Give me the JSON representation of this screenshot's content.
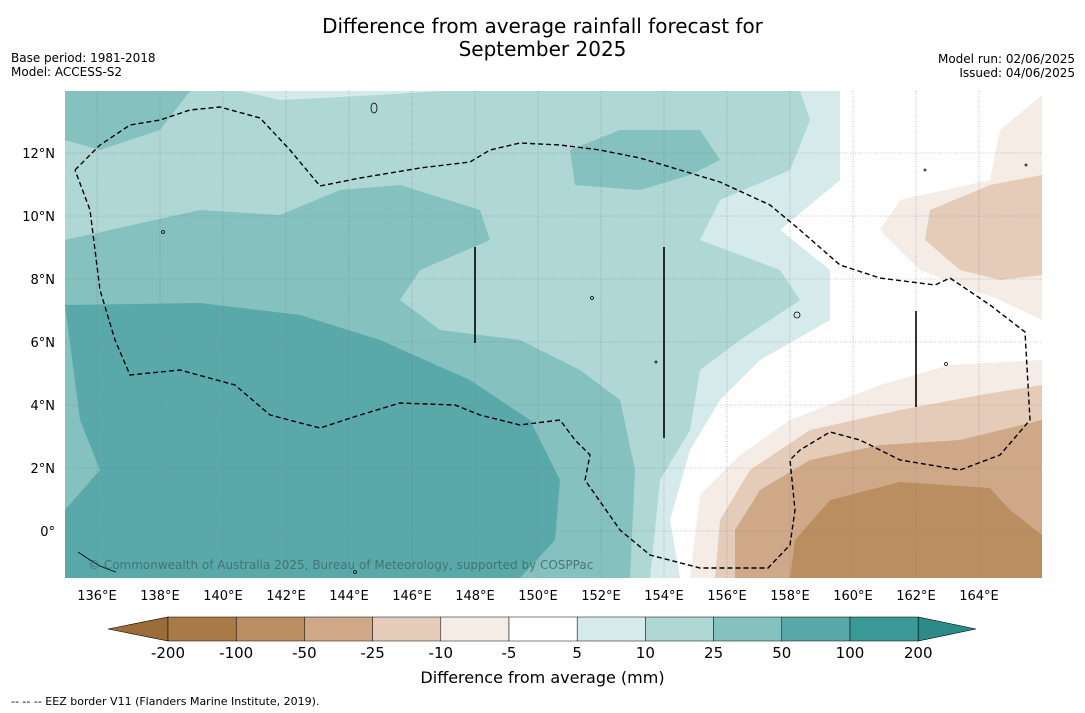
{
  "title_line1": "Difference from average rainfall forecast for",
  "title_line2": "September 2025",
  "meta_left": [
    "Base period: 1981-2018",
    "Model: ACCESS-S2"
  ],
  "meta_right": [
    "Model run: 02/06/2025",
    "Issued: 04/06/2025"
  ],
  "map": {
    "lon_labels": [
      "136°E",
      "138°E",
      "140°E",
      "142°E",
      "144°E",
      "146°E",
      "148°E",
      "150°E",
      "152°E",
      "154°E",
      "156°E",
      "158°E",
      "160°E",
      "162°E",
      "164°E"
    ],
    "lat_labels": [
      "12°N",
      "10°N",
      "8°N",
      "6°N",
      "4°N",
      "2°N",
      "0°"
    ],
    "copyright": "© Commonwealth of Australia 2025, Bureau of Meteorology, supported by COSPPac"
  },
  "colorbar": {
    "ticks": [
      "-200",
      "-100",
      "-50",
      "-25",
      "-10",
      "-5",
      "5",
      "10",
      "25",
      "50",
      "100",
      "200"
    ],
    "colors": [
      "#a97a45",
      "#bb8e62",
      "#cfa987",
      "#e4ccb8",
      "#f5ece6",
      "#ffffff",
      "#d5eaea",
      "#aed7d6",
      "#84c1bf",
      "#5aa9aa",
      "#3a9896"
    ],
    "under_color": "#9c6c38",
    "over_color": "#2d8b87",
    "label": "Difference from average (mm)"
  },
  "footnote": "--  --  -- EEZ border V11 (Flanders Marine Institute, 2019)."
}
